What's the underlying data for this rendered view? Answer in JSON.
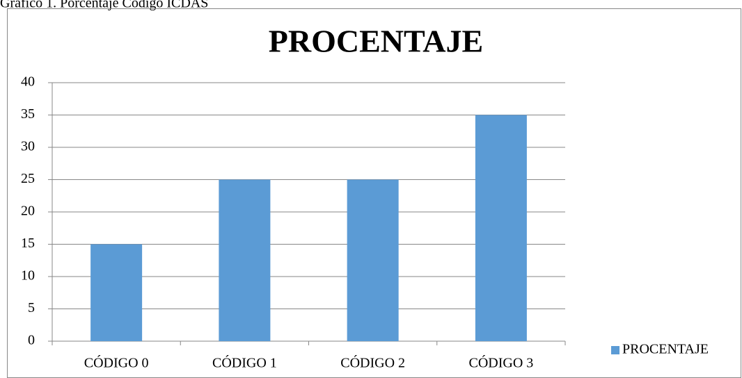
{
  "caption": "Gráfico 1. Porcentaje Código ICDAS",
  "chart_data": {
    "type": "bar",
    "title": "PROCENTAJE",
    "categories": [
      "CÓDIGO 0",
      "CÓDIGO 1",
      "CÓDIGO 2",
      "CÓDIGO 3"
    ],
    "series": [
      {
        "name": "PROCENTAJE",
        "color": "#5b9bd5",
        "values": [
          15,
          25,
          25,
          35
        ]
      }
    ],
    "ylim": [
      0,
      40
    ],
    "yticks": [
      0,
      5,
      10,
      15,
      20,
      25,
      30,
      35,
      40
    ],
    "grid": true,
    "legend": "right"
  }
}
